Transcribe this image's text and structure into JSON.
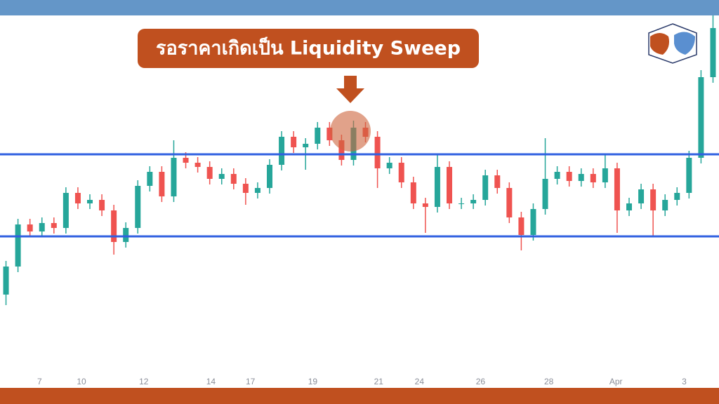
{
  "chart_data": {
    "type": "candlestick",
    "annotation": "รอราคาเกิดเป็น Liquidity Sweep",
    "up_color": "#26a69a",
    "down_color": "#ef5350",
    "level_color": "#2f5fe0",
    "levels": [
      332,
      215
    ],
    "ylim": [
      0,
      530
    ],
    "xlim": [
      0,
      60
    ],
    "xticks": [
      {
        "value": 3.3,
        "label": "7"
      },
      {
        "value": 6.8,
        "label": "10"
      },
      {
        "value": 12,
        "label": "12"
      },
      {
        "value": 17.6,
        "label": "14"
      },
      {
        "value": 20.9,
        "label": "17"
      },
      {
        "value": 26.1,
        "label": "19"
      },
      {
        "value": 31.6,
        "label": "21"
      },
      {
        "value": 35,
        "label": "24"
      },
      {
        "value": 40.1,
        "label": "26"
      },
      {
        "value": 45.8,
        "label": "28"
      },
      {
        "value": 51.4,
        "label": "Apr"
      },
      {
        "value": 57.1,
        "label": "3"
      }
    ],
    "open": [
      132,
      172,
      232,
      222,
      234,
      227,
      277,
      262,
      267,
      252,
      207,
      227,
      287,
      307,
      272,
      327,
      320,
      314,
      297,
      304,
      290,
      277,
      284,
      317,
      357,
      342,
      347,
      370,
      352,
      324,
      370,
      357,
      312,
      320,
      292,
      262,
      257,
      314,
      262,
      262,
      267,
      302,
      284,
      242,
      217,
      254,
      297,
      307,
      294,
      304,
      292,
      312,
      252,
      262,
      282,
      252,
      267,
      277,
      327,
      442
    ],
    "high": [
      180,
      240,
      240,
      242,
      242,
      285,
      285,
      275,
      275,
      260,
      235,
      295,
      315,
      315,
      352,
      335,
      328,
      322,
      312,
      312,
      298,
      292,
      325,
      365,
      365,
      355,
      378,
      378,
      360,
      380,
      378,
      365,
      328,
      328,
      300,
      270,
      332,
      322,
      270,
      275,
      310,
      310,
      292,
      250,
      262,
      355,
      315,
      315,
      312,
      312,
      332,
      320,
      270,
      290,
      290,
      275,
      285,
      337,
      452,
      530
    ],
    "low": [
      117,
      164,
      214,
      214,
      219,
      219,
      254,
      254,
      244,
      189,
      199,
      219,
      279,
      264,
      264,
      312,
      306,
      289,
      289,
      282,
      260,
      269,
      276,
      309,
      334,
      310,
      339,
      344,
      316,
      316,
      349,
      284,
      304,
      284,
      254,
      220,
      249,
      254,
      254,
      254,
      259,
      276,
      234,
      195,
      209,
      246,
      289,
      286,
      286,
      284,
      284,
      220,
      244,
      254,
      214,
      244,
      259,
      269,
      319,
      434
    ],
    "close": [
      172,
      232,
      222,
      234,
      227,
      277,
      262,
      267,
      252,
      207,
      227,
      287,
      307,
      272,
      327,
      320,
      314,
      297,
      304,
      290,
      277,
      284,
      317,
      357,
      342,
      347,
      370,
      352,
      324,
      370,
      357,
      312,
      320,
      292,
      262,
      257,
      314,
      262,
      262,
      267,
      302,
      284,
      242,
      217,
      254,
      297,
      307,
      294,
      304,
      292,
      312,
      252,
      262,
      282,
      252,
      267,
      277,
      327,
      442,
      512
    ]
  }
}
